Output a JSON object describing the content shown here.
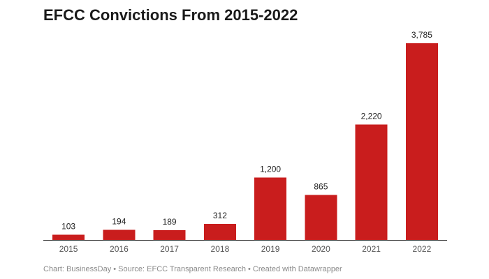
{
  "title": "EFCC Convictions From 2015-2022",
  "footer": "Chart: BusinessDay • Source: EFCC Transparent Research • Created with Datawrapper",
  "bar_color": "#c91d1d",
  "chart_data": {
    "type": "bar",
    "title": "EFCC Convictions From 2015-2022",
    "categories": [
      "2015",
      "2016",
      "2017",
      "2018",
      "2019",
      "2020",
      "2021",
      "2022"
    ],
    "values": [
      103,
      194,
      189,
      312,
      1200,
      865,
      2220,
      3785
    ],
    "value_labels": [
      "103",
      "194",
      "189",
      "312",
      "1,200",
      "865",
      "2,220",
      "3,785"
    ],
    "xlabel": "",
    "ylabel": "",
    "ylim": [
      0,
      3785
    ],
    "grid": false,
    "legend": "none"
  }
}
